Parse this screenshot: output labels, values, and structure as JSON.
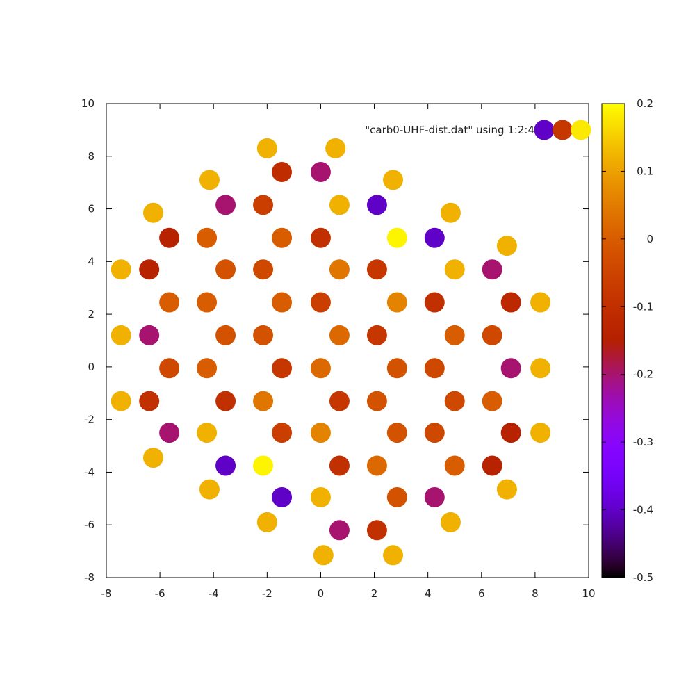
{
  "chart_data": {
    "type": "scatter",
    "title": "",
    "xlabel": "",
    "ylabel": "",
    "xlim": [
      -8,
      10
    ],
    "ylim": [
      -8,
      10
    ],
    "xticks": [
      "-8",
      "-6",
      "-4",
      "-2",
      "0",
      "2",
      "4",
      "6",
      "8",
      "10"
    ],
    "yticks": [
      "-8",
      "-6",
      "-4",
      "-2",
      "0",
      "2",
      "4",
      "6",
      "8",
      "10"
    ],
    "grid": false,
    "legend": {
      "label": "\"carb0-UHF-dist.dat\" using 1:2:4",
      "placement": "top-right"
    },
    "colorbar": {
      "range": [
        -0.5,
        0.2
      ],
      "ticks": [
        "0.2",
        "0.1",
        "0",
        "-0.1",
        "-0.2",
        "-0.3",
        "-0.4",
        "-0.5"
      ],
      "palette": "gnuplot-rgbformulae-7-5-15"
    },
    "points": [
      {
        "x": -2.0,
        "y": 8.3,
        "v": 0.12
      },
      {
        "x": 0.55,
        "y": 8.3,
        "v": 0.12
      },
      {
        "x": -1.45,
        "y": 7.4,
        "v": -0.11
      },
      {
        "x": 0.0,
        "y": 7.4,
        "v": -0.2
      },
      {
        "x": -4.15,
        "y": 7.1,
        "v": 0.12
      },
      {
        "x": 2.7,
        "y": 7.1,
        "v": 0.12
      },
      {
        "x": -3.55,
        "y": 6.15,
        "v": -0.2
      },
      {
        "x": -2.15,
        "y": 6.15,
        "v": -0.06
      },
      {
        "x": 0.7,
        "y": 6.15,
        "v": 0.12
      },
      {
        "x": 2.1,
        "y": 6.15,
        "v": -0.4
      },
      {
        "x": -6.25,
        "y": 5.85,
        "v": 0.12
      },
      {
        "x": 4.85,
        "y": 5.85,
        "v": 0.12
      },
      {
        "x": -5.65,
        "y": 4.9,
        "v": -0.14
      },
      {
        "x": -4.25,
        "y": 4.9,
        "v": 0.0
      },
      {
        "x": -1.45,
        "y": 4.9,
        "v": 0.0
      },
      {
        "x": 0.0,
        "y": 4.9,
        "v": -0.1
      },
      {
        "x": 2.85,
        "y": 4.9,
        "v": 0.19
      },
      {
        "x": 4.25,
        "y": 4.9,
        "v": -0.4
      },
      {
        "x": 6.95,
        "y": 4.6,
        "v": 0.12
      },
      {
        "x": -7.45,
        "y": 3.7,
        "v": 0.12
      },
      {
        "x": -6.4,
        "y": 3.7,
        "v": -0.14
      },
      {
        "x": -3.55,
        "y": 3.7,
        "v": -0.02
      },
      {
        "x": -2.15,
        "y": 3.7,
        "v": -0.04
      },
      {
        "x": 0.7,
        "y": 3.7,
        "v": 0.04
      },
      {
        "x": 2.1,
        "y": 3.7,
        "v": -0.08
      },
      {
        "x": 5.0,
        "y": 3.7,
        "v": 0.12
      },
      {
        "x": 6.4,
        "y": 3.7,
        "v": -0.2
      },
      {
        "x": -5.65,
        "y": 2.45,
        "v": 0.0
      },
      {
        "x": -4.25,
        "y": 2.45,
        "v": 0.0
      },
      {
        "x": -1.45,
        "y": 2.45,
        "v": 0.0
      },
      {
        "x": 0.0,
        "y": 2.45,
        "v": -0.06
      },
      {
        "x": 2.85,
        "y": 2.45,
        "v": 0.06
      },
      {
        "x": 4.25,
        "y": 2.45,
        "v": -0.1
      },
      {
        "x": 7.1,
        "y": 2.45,
        "v": -0.12
      },
      {
        "x": 8.2,
        "y": 2.45,
        "v": 0.12
      },
      {
        "x": -7.45,
        "y": 1.2,
        "v": 0.12
      },
      {
        "x": -6.4,
        "y": 1.2,
        "v": -0.2
      },
      {
        "x": -3.55,
        "y": 1.2,
        "v": -0.02
      },
      {
        "x": -2.15,
        "y": 1.2,
        "v": -0.02
      },
      {
        "x": 0.7,
        "y": 1.2,
        "v": 0.02
      },
      {
        "x": 2.1,
        "y": 1.2,
        "v": -0.08
      },
      {
        "x": 5.0,
        "y": 1.2,
        "v": 0.0
      },
      {
        "x": 6.4,
        "y": 1.2,
        "v": -0.04
      },
      {
        "x": -5.65,
        "y": -0.05,
        "v": -0.04
      },
      {
        "x": -4.25,
        "y": -0.05,
        "v": 0.0
      },
      {
        "x": -1.45,
        "y": -0.05,
        "v": -0.08
      },
      {
        "x": 0.0,
        "y": -0.05,
        "v": 0.02
      },
      {
        "x": 2.85,
        "y": -0.05,
        "v": -0.02
      },
      {
        "x": 4.25,
        "y": -0.05,
        "v": -0.04
      },
      {
        "x": 7.1,
        "y": -0.05,
        "v": -0.2
      },
      {
        "x": 8.2,
        "y": -0.05,
        "v": 0.12
      },
      {
        "x": -7.45,
        "y": -1.3,
        "v": 0.12
      },
      {
        "x": -6.4,
        "y": -1.3,
        "v": -0.1
      },
      {
        "x": -3.55,
        "y": -1.3,
        "v": -0.1
      },
      {
        "x": -2.15,
        "y": -1.3,
        "v": 0.04
      },
      {
        "x": 0.7,
        "y": -1.3,
        "v": -0.08
      },
      {
        "x": 2.1,
        "y": -1.3,
        "v": -0.02
      },
      {
        "x": 5.0,
        "y": -1.3,
        "v": -0.04
      },
      {
        "x": 6.4,
        "y": -1.3,
        "v": 0.0
      },
      {
        "x": -5.65,
        "y": -2.5,
        "v": -0.2
      },
      {
        "x": -4.25,
        "y": -2.5,
        "v": 0.12
      },
      {
        "x": -1.45,
        "y": -2.5,
        "v": -0.06
      },
      {
        "x": 0.0,
        "y": -2.5,
        "v": 0.06
      },
      {
        "x": 2.85,
        "y": -2.5,
        "v": -0.02
      },
      {
        "x": 4.25,
        "y": -2.5,
        "v": -0.04
      },
      {
        "x": 7.1,
        "y": -2.5,
        "v": -0.14
      },
      {
        "x": 8.2,
        "y": -2.5,
        "v": 0.12
      },
      {
        "x": -6.25,
        "y": -3.45,
        "v": 0.12
      },
      {
        "x": -3.55,
        "y": -3.75,
        "v": -0.4
      },
      {
        "x": -2.15,
        "y": -3.75,
        "v": 0.19
      },
      {
        "x": 0.7,
        "y": -3.75,
        "v": -0.1
      },
      {
        "x": 2.1,
        "y": -3.75,
        "v": 0.02
      },
      {
        "x": 5.0,
        "y": -3.75,
        "v": 0.0
      },
      {
        "x": 6.4,
        "y": -3.75,
        "v": -0.14
      },
      {
        "x": -4.15,
        "y": -4.65,
        "v": 0.12
      },
      {
        "x": 6.95,
        "y": -4.65,
        "v": 0.12
      },
      {
        "x": -1.45,
        "y": -4.95,
        "v": -0.4
      },
      {
        "x": 0.0,
        "y": -4.95,
        "v": 0.12
      },
      {
        "x": 2.85,
        "y": -4.95,
        "v": -0.02
      },
      {
        "x": 4.25,
        "y": -4.95,
        "v": -0.2
      },
      {
        "x": -2.0,
        "y": -5.9,
        "v": 0.12
      },
      {
        "x": 4.85,
        "y": -5.9,
        "v": 0.12
      },
      {
        "x": 0.7,
        "y": -6.2,
        "v": -0.2
      },
      {
        "x": 2.1,
        "y": -6.2,
        "v": -0.1
      },
      {
        "x": 0.1,
        "y": -7.15,
        "v": 0.12
      },
      {
        "x": 2.7,
        "y": -7.15,
        "v": 0.12
      }
    ],
    "legend_samples": [
      -0.4,
      -0.08,
      0.18
    ]
  }
}
